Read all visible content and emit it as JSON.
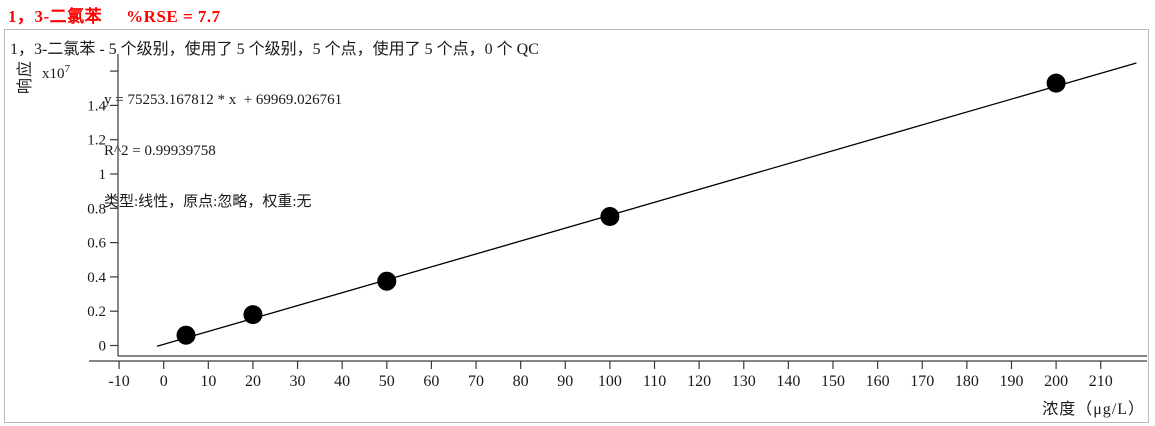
{
  "title": {
    "compound": "1，3-二氯苯",
    "rse": "%RSE = 7.7",
    "color": "#ff0000"
  },
  "subtitle": "1，3-二氯苯 - 5 个级别，使用了 5 个级别，5 个点，使用了 5 个点，0 个 QC",
  "stats": {
    "equation": "y = 75253.167812 * x  + 69969.026761",
    "r_squared": "R^2 = 0.99939758",
    "fit_settings": "类型:线性，原点:忽略，权重:无"
  },
  "chart_data": {
    "type": "scatter",
    "title": "1，3-二氯苯  %RSE = 7.7",
    "xlabel": "浓度（μg/L）",
    "ylabel": "响应",
    "grid": false,
    "legend": "none",
    "x_axis": {
      "tick_labels": [
        "-10",
        "0",
        "10",
        "20",
        "30",
        "40",
        "50",
        "60",
        "70",
        "80",
        "90",
        "100",
        "110",
        "120",
        "130",
        "140",
        "150",
        "160",
        "170",
        "180",
        "190",
        "200",
        "210"
      ],
      "xlim": [
        -16.7,
        220.5
      ]
    },
    "y_axis": {
      "scale_base": "x10",
      "scale_exponent": "7",
      "tick_labels": [
        "0",
        "0.2",
        "0.4",
        "0.6",
        "0.8",
        "1",
        "1.2",
        "1.4"
      ],
      "scale_tick_value": 16000000,
      "ylim": [
        -650000,
        16900000
      ]
    },
    "points": {
      "x": [
        5,
        20,
        50,
        100,
        200
      ],
      "y": [
        600000,
        1800000,
        3750000,
        7520000,
        15300000
      ]
    },
    "fit": {
      "slope": 75253.167812,
      "intercept": 69969.026761,
      "r2": 0.99939758,
      "line_x_range": [
        -1.5,
        218
      ],
      "point_color": "#000000",
      "line_color": "#000000"
    }
  }
}
